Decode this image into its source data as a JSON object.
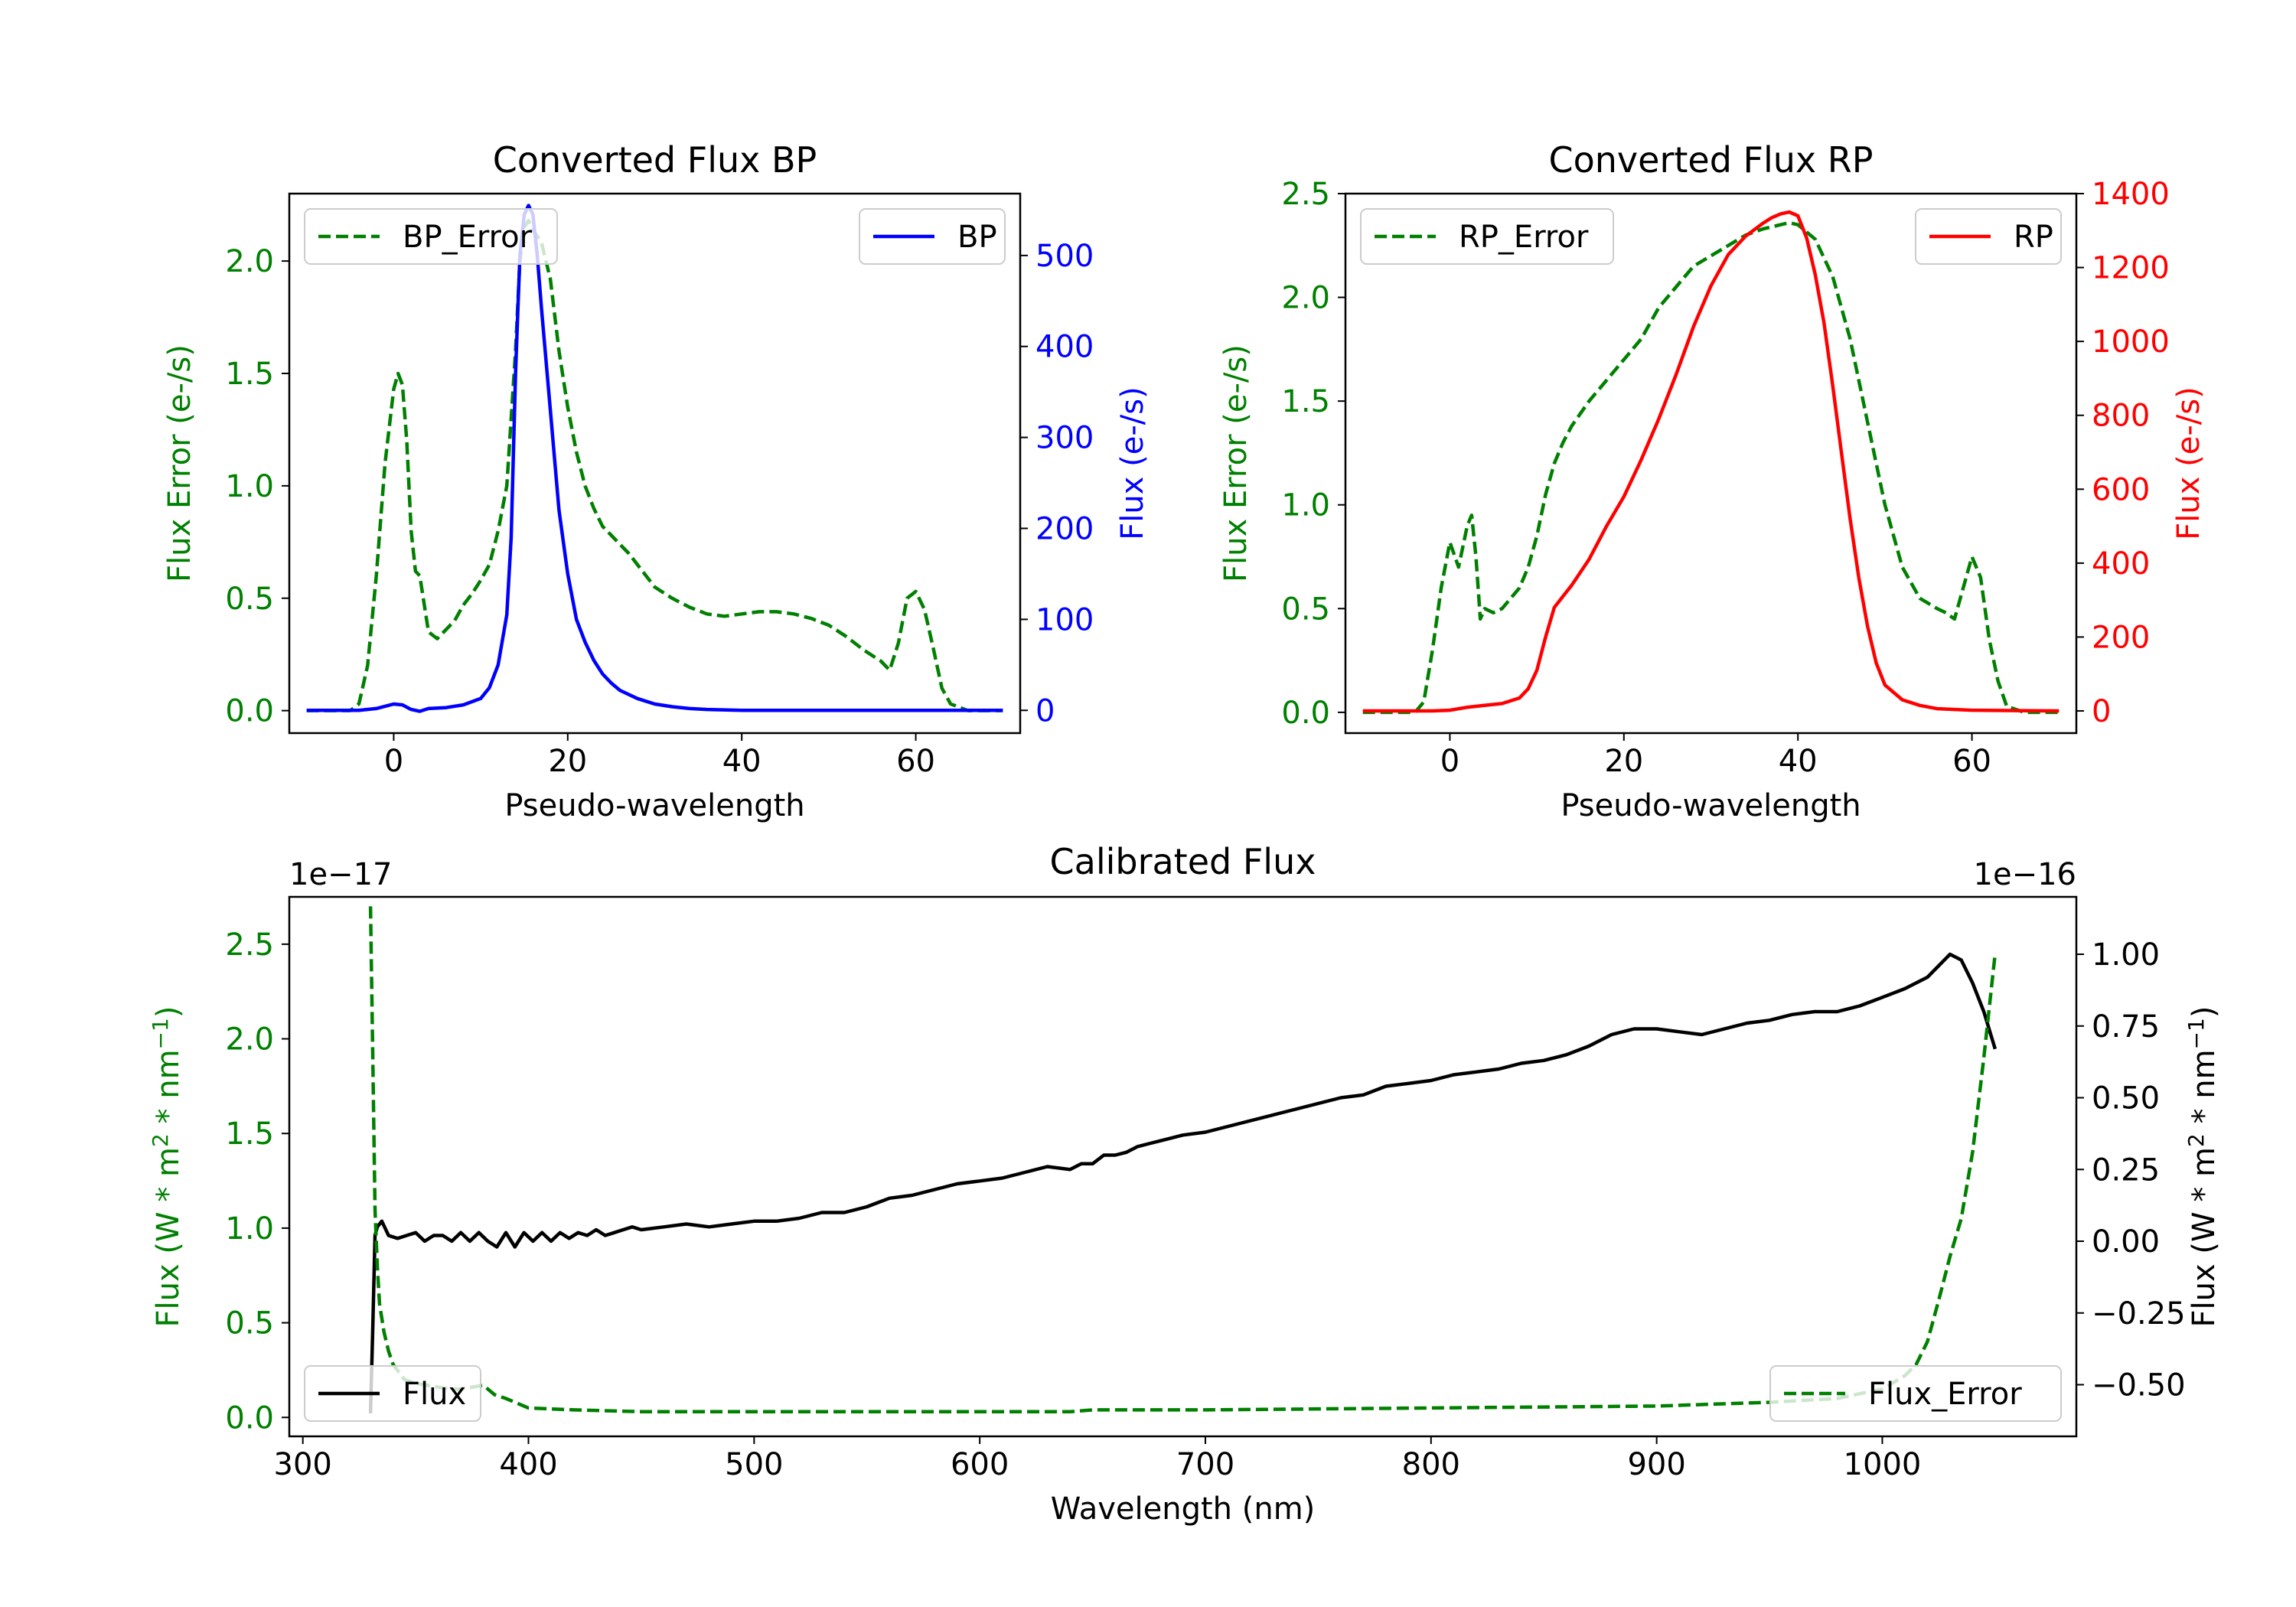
{
  "chart_data": [
    {
      "id": "bp",
      "type": "line",
      "title": "Converted Flux BP",
      "xlabel": "Pseudo-wavelength",
      "xlim": [
        -12,
        72
      ],
      "xticks": [
        0,
        20,
        40,
        60
      ],
      "left_axis": {
        "label": "Flux Error (e-/s)",
        "color": "#008000",
        "lim": [
          -0.1,
          2.3
        ],
        "ticks": [
          0.0,
          0.5,
          1.0,
          1.5,
          2.0
        ],
        "tick_labels": [
          "0.0",
          "0.5",
          "1.0",
          "1.5",
          "2.0"
        ]
      },
      "right_axis": {
        "label": "Flux (e-/s)",
        "color": "#0000ff",
        "lim": [
          -25,
          568
        ],
        "ticks": [
          0,
          100,
          200,
          300,
          400,
          500
        ],
        "tick_labels": [
          "0",
          "100",
          "200",
          "300",
          "400",
          "500"
        ]
      },
      "series": [
        {
          "name": "BP_Error",
          "axis": "left",
          "color": "#008000",
          "style": "dashed",
          "x": [
            -10,
            -5,
            -4,
            -3,
            -2,
            -1,
            0,
            0.5,
            1,
            1.5,
            2,
            2.5,
            3,
            4,
            5,
            6,
            7,
            8,
            9,
            10,
            11,
            12,
            13,
            14,
            14.5,
            15,
            15.5,
            16,
            17,
            18,
            19,
            20,
            21,
            22,
            23,
            24,
            25,
            26,
            27,
            28,
            29,
            30,
            32,
            34,
            36,
            38,
            40,
            42,
            44,
            46,
            48,
            50,
            52,
            54,
            56,
            57,
            58,
            59,
            60,
            61,
            62,
            63,
            64,
            66,
            70
          ],
          "y": [
            0,
            0,
            0.03,
            0.2,
            0.6,
            1.1,
            1.43,
            1.5,
            1.45,
            1.2,
            0.8,
            0.62,
            0.6,
            0.35,
            0.32,
            0.36,
            0.4,
            0.47,
            0.52,
            0.58,
            0.65,
            0.8,
            1.0,
            1.6,
            2.0,
            2.15,
            2.18,
            2.14,
            2.08,
            1.92,
            1.6,
            1.35,
            1.15,
            1.0,
            0.9,
            0.82,
            0.78,
            0.74,
            0.7,
            0.65,
            0.6,
            0.55,
            0.5,
            0.46,
            0.43,
            0.42,
            0.43,
            0.44,
            0.44,
            0.43,
            0.41,
            0.38,
            0.33,
            0.27,
            0.22,
            0.18,
            0.3,
            0.5,
            0.53,
            0.45,
            0.28,
            0.1,
            0.03,
            0,
            0
          ]
        },
        {
          "name": "BP",
          "axis": "right",
          "color": "#0000ff",
          "style": "solid",
          "x": [
            -10,
            -4,
            -2,
            0,
            1,
            2,
            3,
            4,
            6,
            8,
            10,
            11,
            12,
            13,
            13.5,
            14,
            14.5,
            15,
            15.5,
            16,
            16.5,
            17,
            18,
            19,
            20,
            21,
            22,
            23,
            24,
            25,
            26,
            28,
            30,
            32,
            34,
            36,
            40,
            50,
            60,
            70
          ],
          "y": [
            0,
            0,
            2,
            7,
            6,
            1,
            -1,
            2,
            3,
            6,
            13,
            25,
            50,
            105,
            190,
            370,
            500,
            545,
            555,
            545,
            500,
            440,
            330,
            220,
            150,
            100,
            75,
            55,
            40,
            30,
            22,
            13,
            7,
            4,
            2,
            1,
            0,
            0,
            0,
            0
          ]
        }
      ]
    },
    {
      "id": "rp",
      "type": "line",
      "title": "Converted Flux RP",
      "xlabel": "Pseudo-wavelength",
      "xlim": [
        -12,
        72
      ],
      "xticks": [
        0,
        20,
        40,
        60
      ],
      "left_axis": {
        "label": "Flux Error (e-/s)",
        "color": "#008000",
        "lim": [
          -0.1,
          2.5
        ],
        "ticks": [
          0.0,
          0.5,
          1.0,
          1.5,
          2.0,
          2.5
        ],
        "tick_labels": [
          "0.0",
          "0.5",
          "1.0",
          "1.5",
          "2.0",
          "2.5"
        ]
      },
      "right_axis": {
        "label": "Flux (e-/s)",
        "color": "#ff0000",
        "lim": [
          -60,
          1400
        ],
        "ticks": [
          0,
          200,
          400,
          600,
          800,
          1000,
          1200,
          1400
        ],
        "tick_labels": [
          "0",
          "200",
          "400",
          "600",
          "800",
          "1000",
          "1200",
          "1400"
        ]
      },
      "series": [
        {
          "name": "RP_Error",
          "axis": "left",
          "color": "#008000",
          "style": "dashed",
          "x": [
            -10,
            -4,
            -3,
            -2,
            -1,
            0,
            1,
            2,
            2.5,
            3,
            3.5,
            4,
            5,
            6,
            7,
            8,
            9,
            10,
            11,
            12,
            13,
            14,
            16,
            18,
            20,
            22,
            24,
            26,
            28,
            30,
            32,
            34,
            36,
            38,
            39,
            40,
            42,
            44,
            46,
            48,
            50,
            52,
            54,
            56,
            57,
            58,
            59,
            60,
            61,
            62,
            63,
            64,
            66,
            70
          ],
          "y": [
            0,
            0,
            0.05,
            0.3,
            0.6,
            0.82,
            0.7,
            0.9,
            0.95,
            0.75,
            0.45,
            0.5,
            0.48,
            0.5,
            0.55,
            0.6,
            0.7,
            0.85,
            1.05,
            1.2,
            1.3,
            1.38,
            1.5,
            1.6,
            1.7,
            1.8,
            1.95,
            2.05,
            2.15,
            2.2,
            2.25,
            2.3,
            2.33,
            2.35,
            2.36,
            2.35,
            2.28,
            2.1,
            1.8,
            1.4,
            1.0,
            0.7,
            0.55,
            0.5,
            0.48,
            0.45,
            0.6,
            0.75,
            0.65,
            0.35,
            0.15,
            0.03,
            0,
            0
          ]
        },
        {
          "name": "RP",
          "axis": "right",
          "color": "#ff0000",
          "style": "solid",
          "x": [
            -10,
            -2,
            0,
            2,
            4,
            6,
            8,
            9,
            10,
            11,
            12,
            13,
            14,
            16,
            18,
            20,
            22,
            24,
            26,
            28,
            30,
            32,
            34,
            36,
            37,
            38,
            39,
            40,
            41,
            42,
            43,
            44,
            45,
            46,
            47,
            48,
            49,
            50,
            52,
            54,
            56,
            60,
            70
          ],
          "y": [
            0,
            0,
            2,
            10,
            15,
            20,
            35,
            60,
            110,
            200,
            280,
            310,
            340,
            410,
            500,
            580,
            680,
            790,
            910,
            1040,
            1150,
            1235,
            1285,
            1320,
            1335,
            1345,
            1350,
            1340,
            1280,
            1180,
            1050,
            880,
            700,
            520,
            360,
            230,
            130,
            70,
            30,
            15,
            6,
            2,
            0
          ]
        }
      ]
    },
    {
      "id": "calibrated",
      "type": "line",
      "title": "Calibrated Flux",
      "xlabel": "Wavelength (nm)",
      "xlim": [
        294,
        1086
      ],
      "xticks": [
        300,
        400,
        500,
        600,
        700,
        800,
        900,
        1000
      ],
      "left_axis": {
        "label": "Flux (W * m2 * nm −1)",
        "label_base": "Flux (W * m",
        "label_sup1": "2",
        "label_mid": " * nm",
        "label_sup2": "−1",
        "label_end": ")",
        "color": "#008000",
        "offset_text": "1e−17",
        "lim": [
          -0.1,
          2.75
        ],
        "ticks": [
          0.0,
          0.5,
          1.0,
          1.5,
          2.0,
          2.5
        ],
        "tick_labels": [
          "0.0",
          "0.5",
          "1.0",
          "1.5",
          "2.0",
          "2.5"
        ]
      },
      "right_axis": {
        "label": "Flux (W * m2 * nm −1)",
        "label_base": "Flux (W * m",
        "label_sup1": "2",
        "label_mid": " * nm",
        "label_sup2": "−1",
        "label_end": ")",
        "color": "#000000",
        "offset_text": "1e−16",
        "lim": [
          -0.68,
          1.2
        ],
        "ticks": [
          -0.5,
          -0.25,
          0.0,
          0.25,
          0.5,
          0.75,
          1.0
        ],
        "tick_labels": [
          "−0.50",
          "−0.25",
          "0.00",
          "0.25",
          "0.50",
          "0.75",
          "1.00"
        ]
      },
      "series": [
        {
          "name": "Flux",
          "axis": "right",
          "color": "#000000",
          "style": "solid",
          "x": [
            330,
            331,
            332,
            333,
            335,
            338,
            342,
            346,
            350,
            354,
            358,
            362,
            366,
            370,
            374,
            378,
            382,
            386,
            390,
            394,
            398,
            402,
            406,
            410,
            414,
            418,
            422,
            426,
            430,
            434,
            438,
            442,
            446,
            450,
            460,
            470,
            480,
            490,
            500,
            510,
            520,
            530,
            540,
            550,
            560,
            570,
            580,
            590,
            600,
            610,
            620,
            630,
            640,
            645,
            650,
            655,
            660,
            665,
            670,
            675,
            680,
            690,
            700,
            710,
            720,
            730,
            740,
            750,
            760,
            770,
            780,
            790,
            800,
            810,
            820,
            830,
            840,
            850,
            860,
            870,
            880,
            890,
            900,
            910,
            920,
            930,
            940,
            950,
            960,
            970,
            980,
            990,
            1000,
            1010,
            1020,
            1025,
            1030,
            1035,
            1040,
            1045,
            1050
          ],
          "y": [
            -0.6,
            -0.3,
            0.02,
            0.05,
            0.07,
            0.02,
            0.01,
            0.02,
            0.03,
            0.0,
            0.02,
            0.02,
            0.0,
            0.03,
            0.0,
            0.03,
            0.0,
            -0.02,
            0.03,
            -0.02,
            0.03,
            0.0,
            0.03,
            0.0,
            0.03,
            0.01,
            0.03,
            0.02,
            0.04,
            0.02,
            0.03,
            0.04,
            0.05,
            0.04,
            0.05,
            0.06,
            0.05,
            0.06,
            0.07,
            0.07,
            0.08,
            0.1,
            0.1,
            0.12,
            0.15,
            0.16,
            0.18,
            0.2,
            0.21,
            0.22,
            0.24,
            0.26,
            0.25,
            0.27,
            0.27,
            0.3,
            0.3,
            0.31,
            0.33,
            0.34,
            0.35,
            0.37,
            0.38,
            0.4,
            0.42,
            0.44,
            0.46,
            0.48,
            0.5,
            0.51,
            0.54,
            0.55,
            0.56,
            0.58,
            0.59,
            0.6,
            0.62,
            0.63,
            0.65,
            0.68,
            0.72,
            0.74,
            0.74,
            0.73,
            0.72,
            0.74,
            0.76,
            0.77,
            0.79,
            0.8,
            0.8,
            0.82,
            0.85,
            0.88,
            0.92,
            0.96,
            1.0,
            0.98,
            0.9,
            0.8,
            0.67
          ]
        },
        {
          "name": "Flux_Error",
          "axis": "left",
          "color": "#008000",
          "style": "dashed",
          "x": [
            330,
            331,
            332,
            333,
            334,
            336,
            338,
            340,
            345,
            350,
            355,
            360,
            365,
            370,
            375,
            380,
            385,
            390,
            400,
            420,
            450,
            500,
            550,
            600,
            630,
            640,
            650,
            700,
            800,
            900,
            950,
            980,
            1000,
            1010,
            1015,
            1020,
            1025,
            1030,
            1035,
            1040,
            1045,
            1050
          ],
          "y": [
            2.7,
            1.9,
            1.1,
            0.8,
            0.6,
            0.45,
            0.35,
            0.28,
            0.2,
            0.18,
            0.17,
            0.16,
            0.15,
            0.15,
            0.16,
            0.17,
            0.12,
            0.1,
            0.05,
            0.04,
            0.03,
            0.03,
            0.03,
            0.03,
            0.03,
            0.03,
            0.04,
            0.04,
            0.05,
            0.06,
            0.08,
            0.1,
            0.15,
            0.22,
            0.28,
            0.4,
            0.62,
            0.85,
            1.05,
            1.4,
            1.9,
            2.45
          ]
        }
      ]
    }
  ]
}
